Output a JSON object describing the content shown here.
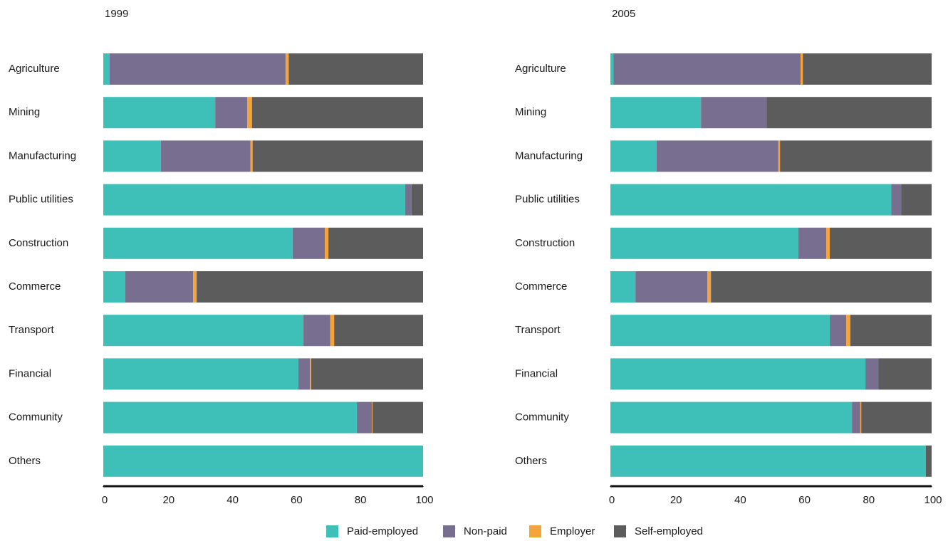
{
  "chart_data": [
    {
      "type": "stacked-bar",
      "title": "1999",
      "categories": [
        "Agriculture",
        "Mining",
        "Manufacturing",
        "Public utilities",
        "Construction",
        "Commerce",
        "Transport",
        "Financial",
        "Community",
        "Others"
      ],
      "series": [
        {
          "name": "Paid-employed",
          "color": "#3ebfb8",
          "values": [
            2,
            35,
            18,
            94.4,
            59.2,
            6.9,
            62.6,
            61,
            79.3,
            100
          ]
        },
        {
          "name": "Non-paid",
          "color": "#786e8f",
          "values": [
            55,
            10,
            28,
            2,
            10.1,
            21.2,
            8.4,
            3.6,
            4.7,
            0
          ]
        },
        {
          "name": "Employer",
          "color": "#f5a33b",
          "values": [
            1,
            1.5,
            0.7,
            0,
            1.1,
            1.1,
            1.2,
            0.4,
            0.2,
            0
          ]
        },
        {
          "name": "Self-employed",
          "color": "#5b5c5b",
          "values": [
            42,
            53.5,
            53.3,
            3.6,
            29.6,
            70.8,
            27.8,
            35,
            15.8,
            0
          ]
        }
      ],
      "xlim": [
        0,
        100
      ],
      "xticks": [
        0,
        20,
        40,
        60,
        80,
        100
      ]
    },
    {
      "type": "stacked-bar",
      "title": "2005",
      "categories": [
        "Agriculture",
        "Mining",
        "Manufacturing",
        "Public utilities",
        "Construction",
        "Commerce",
        "Transport",
        "Financial",
        "Community",
        "Others"
      ],
      "series": [
        {
          "name": "Paid-employed",
          "color": "#3ebfb8",
          "values": [
            1,
            28.2,
            14.4,
            87.4,
            58.5,
            7.8,
            68.3,
            79.4,
            75.2,
            98.2
          ]
        },
        {
          "name": "Non-paid",
          "color": "#786e8f",
          "values": [
            58.2,
            20.4,
            37.9,
            3.1,
            8.7,
            22.4,
            5.1,
            4,
            2.6,
            0
          ]
        },
        {
          "name": "Employer",
          "color": "#f5a33b",
          "values": [
            0.7,
            0,
            0.5,
            0,
            1.1,
            1.1,
            1.3,
            0,
            0.3,
            0
          ]
        },
        {
          "name": "Self-employed",
          "color": "#5b5c5b",
          "values": [
            40.1,
            51.4,
            47.3,
            9.5,
            31.7,
            68.7,
            25.3,
            16.6,
            21.9,
            1.8
          ]
        }
      ],
      "xlim": [
        0,
        100
      ],
      "xticks": [
        0,
        20,
        40,
        60,
        80,
        100
      ]
    }
  ]
}
